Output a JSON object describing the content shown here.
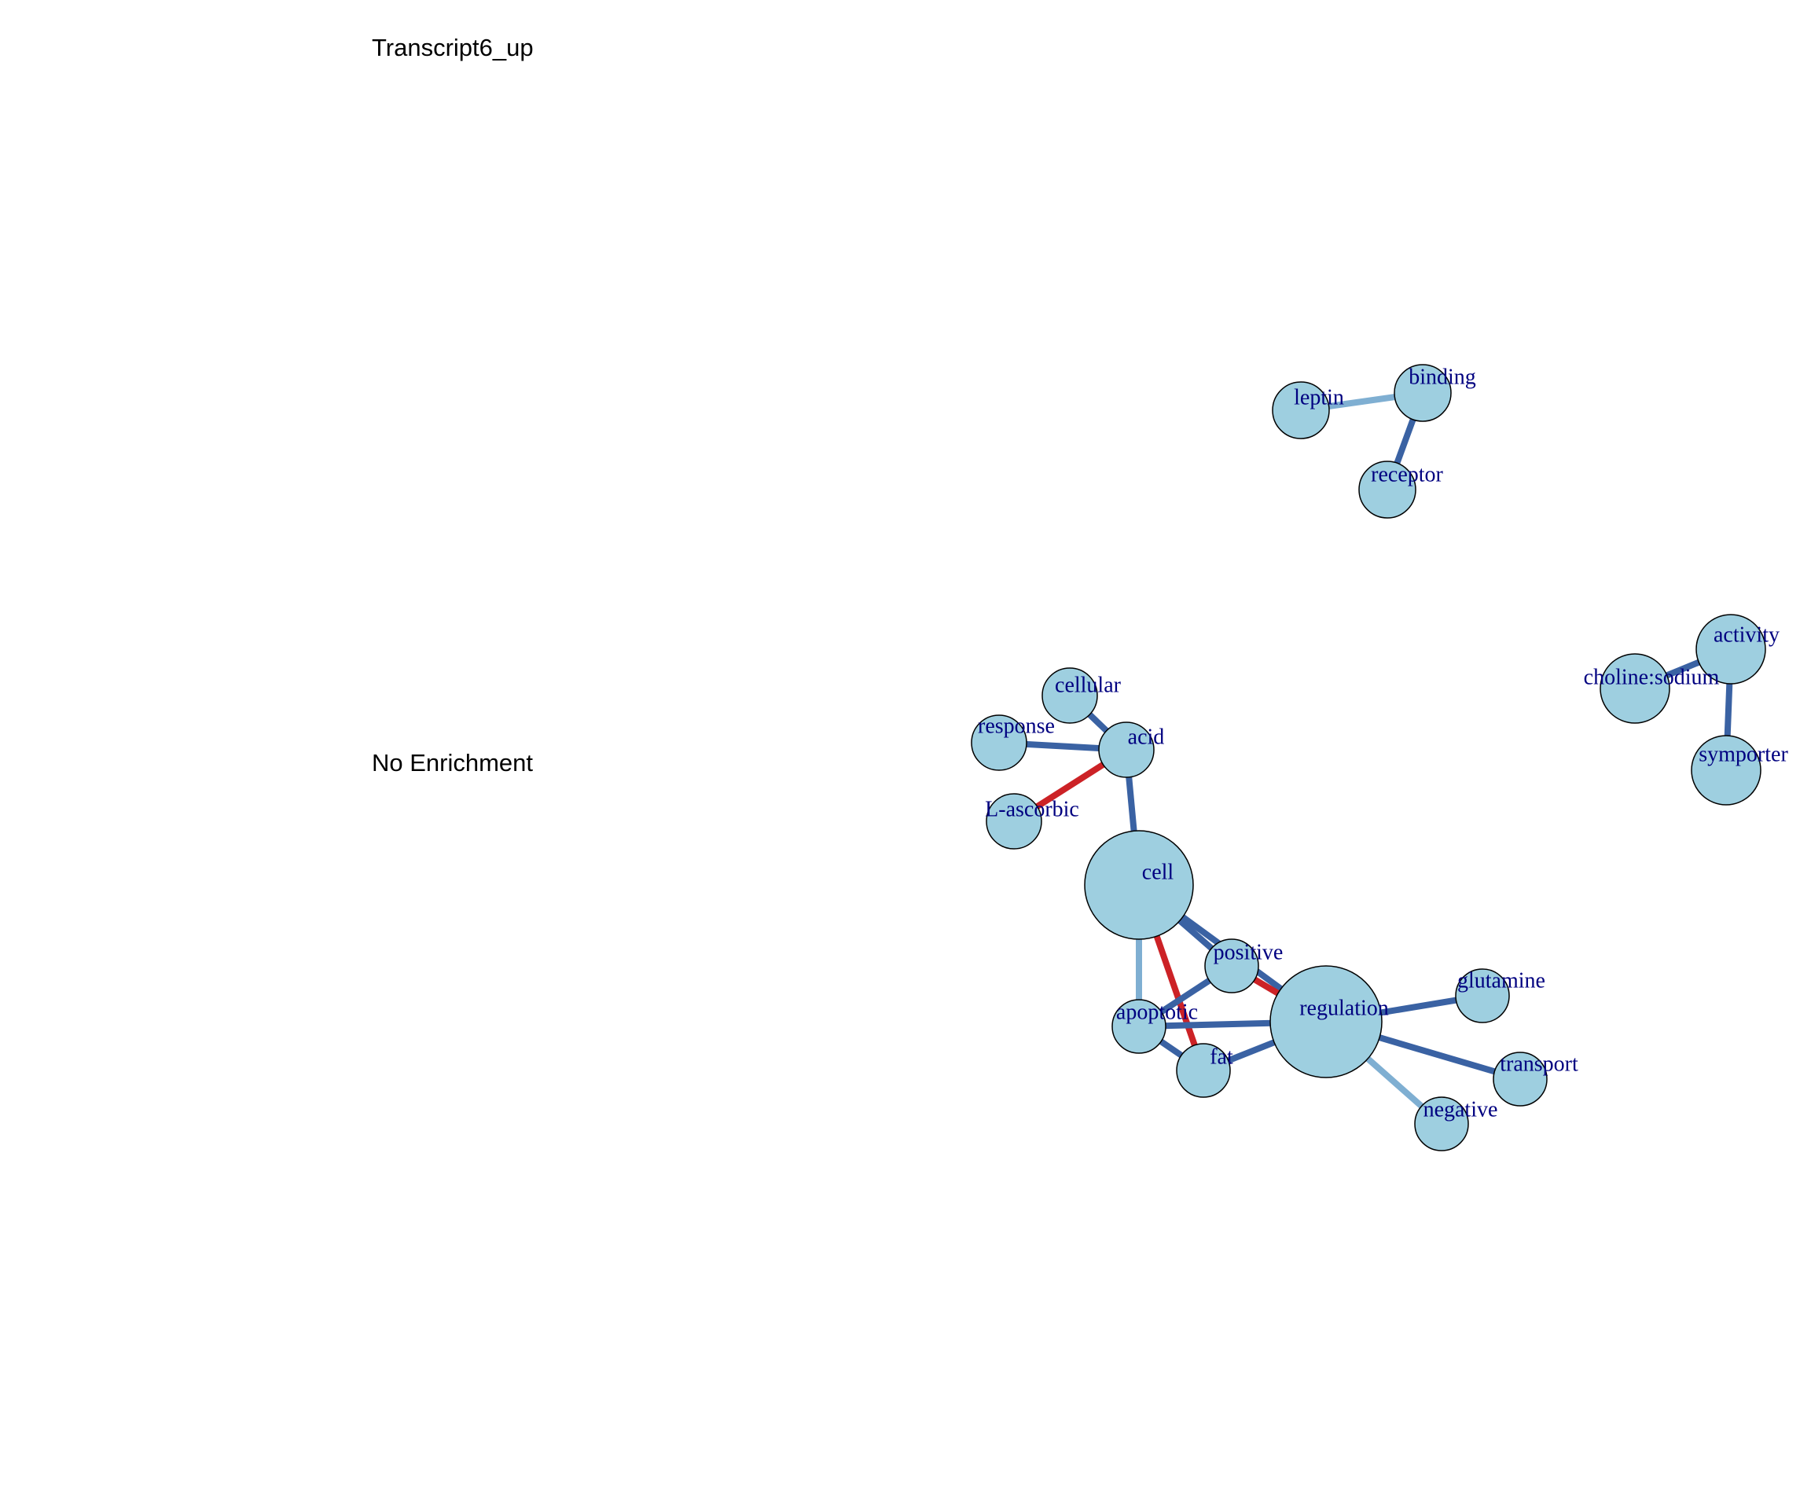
{
  "title": "Transcript6_up",
  "status_text": "No Enrichment",
  "colors": {
    "node_fill": "#9ecfe0",
    "node_stroke": "#000000",
    "label": "#000080",
    "edge_dark_blue": "#3a62a3",
    "edge_light_blue": "#7fafd2",
    "edge_red": "#cc2226"
  },
  "network": {
    "nodes": [
      {
        "id": "leptin",
        "label": "leptin"
      },
      {
        "id": "binding",
        "label": "binding"
      },
      {
        "id": "receptor",
        "label": "receptor"
      },
      {
        "id": "activity",
        "label": "activity"
      },
      {
        "id": "choline_sodium",
        "label": "choline:sodium"
      },
      {
        "id": "symporter",
        "label": "symporter"
      },
      {
        "id": "cellular",
        "label": "cellular"
      },
      {
        "id": "response",
        "label": "response"
      },
      {
        "id": "acid",
        "label": "acid"
      },
      {
        "id": "l_ascorbic",
        "label": "L-ascorbic"
      },
      {
        "id": "cell",
        "label": "cell"
      },
      {
        "id": "positive",
        "label": "positive"
      },
      {
        "id": "apoptotic",
        "label": "apoptotic"
      },
      {
        "id": "fat",
        "label": "fat"
      },
      {
        "id": "regulation",
        "label": "regulation"
      },
      {
        "id": "glutamine",
        "label": "glutamine"
      },
      {
        "id": "transport",
        "label": "transport"
      },
      {
        "id": "negative",
        "label": "negative"
      }
    ],
    "edges": [
      {
        "from": "leptin",
        "to": "binding",
        "color": "edge_light_blue"
      },
      {
        "from": "binding",
        "to": "receptor",
        "color": "edge_dark_blue"
      },
      {
        "from": "choline_sodium",
        "to": "activity",
        "color": "edge_dark_blue"
      },
      {
        "from": "activity",
        "to": "symporter",
        "color": "edge_dark_blue"
      },
      {
        "from": "cellular",
        "to": "acid",
        "color": "edge_dark_blue"
      },
      {
        "from": "response",
        "to": "acid",
        "color": "edge_dark_blue"
      },
      {
        "from": "l_ascorbic",
        "to": "acid",
        "color": "edge_red"
      },
      {
        "from": "acid",
        "to": "cell",
        "color": "edge_dark_blue"
      },
      {
        "from": "cell",
        "to": "regulation",
        "color": "edge_dark_blue"
      },
      {
        "from": "cell",
        "to": "positive",
        "color": "edge_dark_blue"
      },
      {
        "from": "cell",
        "to": "apoptotic",
        "color": "edge_light_blue"
      },
      {
        "from": "cell",
        "to": "fat",
        "color": "edge_red"
      },
      {
        "from": "positive",
        "to": "regulation",
        "color": "edge_red"
      },
      {
        "from": "positive",
        "to": "apoptotic",
        "color": "edge_dark_blue"
      },
      {
        "from": "apoptotic",
        "to": "regulation",
        "color": "edge_dark_blue"
      },
      {
        "from": "apoptotic",
        "to": "fat",
        "color": "edge_dark_blue"
      },
      {
        "from": "fat",
        "to": "regulation",
        "color": "edge_dark_blue"
      },
      {
        "from": "regulation",
        "to": "glutamine",
        "color": "edge_dark_blue"
      },
      {
        "from": "regulation",
        "to": "transport",
        "color": "edge_dark_blue"
      },
      {
        "from": "regulation",
        "to": "negative",
        "color": "edge_light_blue"
      }
    ]
  }
}
